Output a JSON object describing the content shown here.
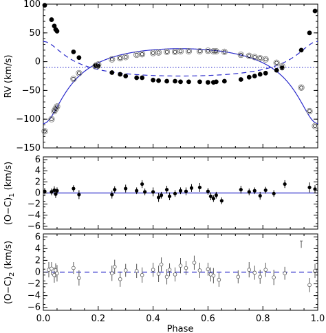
{
  "chart_data": [
    {
      "type": "scatter",
      "panel": "rv",
      "xlim": [
        0.0,
        1.0
      ],
      "ylim": [
        -150,
        100
      ],
      "ylabel": "RV (km/s)",
      "xlabel": "",
      "yticks": [
        100,
        50,
        0,
        -50,
        -100,
        -150
      ],
      "reference_line": -10,
      "curve_params": {
        "gamma": -10,
        "K1": 65,
        "K2": 30,
        "e": 0.5,
        "omega_deg": 180
      },
      "series": [
        {
          "name": "",
          "marker": "filled-circle",
          "line": "solid",
          "color": "#2a2acb",
          "points": [
            [
              0.005,
              98
            ],
            [
              0.03,
              73
            ],
            [
              0.04,
              62
            ],
            [
              0.045,
              56
            ],
            [
              0.05,
              53
            ],
            [
              0.11,
              17
            ],
            [
              0.13,
              7
            ],
            [
              0.19,
              -6
            ],
            [
              0.2,
              -8
            ],
            [
              0.25,
              -19
            ],
            [
              0.28,
              -22
            ],
            [
              0.3,
              -25
            ],
            [
              0.34,
              -28
            ],
            [
              0.36,
              -28
            ],
            [
              0.4,
              -32
            ],
            [
              0.42,
              -33
            ],
            [
              0.45,
              -34
            ],
            [
              0.48,
              -34
            ],
            [
              0.5,
              -35
            ],
            [
              0.53,
              -35
            ],
            [
              0.57,
              -35
            ],
            [
              0.6,
              -36
            ],
            [
              0.62,
              -36
            ],
            [
              0.63,
              -35
            ],
            [
              0.66,
              -34
            ],
            [
              0.72,
              -31
            ],
            [
              0.75,
              -27
            ],
            [
              0.77,
              -25
            ],
            [
              0.79,
              -22
            ],
            [
              0.81,
              -20
            ],
            [
              0.85,
              -15
            ],
            [
              0.87,
              -11
            ],
            [
              0.94,
              20
            ],
            [
              0.97,
              50
            ],
            [
              0.99,
              88
            ]
          ]
        },
        {
          "name": "",
          "marker": "open-circle",
          "line": "dashed",
          "color": "#2a2acb",
          "points": [
            [
              0.005,
              -121
            ],
            [
              0.03,
              -100
            ],
            [
              0.04,
              -86
            ],
            [
              0.045,
              -82
            ],
            [
              0.05,
              -78
            ],
            [
              0.11,
              -30
            ],
            [
              0.13,
              -20
            ],
            [
              0.19,
              -8
            ],
            [
              0.2,
              -5
            ],
            [
              0.25,
              4
            ],
            [
              0.28,
              6
            ],
            [
              0.3,
              8
            ],
            [
              0.34,
              12
            ],
            [
              0.36,
              13
            ],
            [
              0.4,
              15
            ],
            [
              0.42,
              16
            ],
            [
              0.45,
              17
            ],
            [
              0.48,
              17
            ],
            [
              0.5,
              18
            ],
            [
              0.53,
              18
            ],
            [
              0.57,
              18
            ],
            [
              0.6,
              19
            ],
            [
              0.62,
              18
            ],
            [
              0.63,
              18
            ],
            [
              0.66,
              17
            ],
            [
              0.72,
              12
            ],
            [
              0.75,
              10
            ],
            [
              0.77,
              8
            ],
            [
              0.79,
              6
            ],
            [
              0.81,
              4
            ],
            [
              0.85,
              -2
            ],
            [
              0.87,
              -8
            ],
            [
              0.94,
              -45
            ],
            [
              0.97,
              -86
            ],
            [
              0.99,
              -112
            ]
          ]
        }
      ]
    },
    {
      "type": "scatter",
      "panel": "oc1",
      "xlim": [
        0.0,
        1.0
      ],
      "ylim": [
        -6.5,
        6.5
      ],
      "ylabel": "(O−C)",
      "ylabel_subscript": "1",
      "ylabel_units": " (km/s)",
      "yticks": [
        6,
        4,
        2,
        0,
        -2,
        -4,
        -6
      ],
      "reference_line": 0,
      "series": [
        {
          "name": "",
          "marker": "filled-circle",
          "error_bars": true,
          "points": [
            [
              0.005,
              0.3,
              0.6
            ],
            [
              0.03,
              0.2,
              0.6
            ],
            [
              0.04,
              0.5,
              0.7
            ],
            [
              0.045,
              -0.2,
              0.7
            ],
            [
              0.05,
              0.4,
              0.6
            ],
            [
              0.11,
              0.8,
              0.6
            ],
            [
              0.13,
              -0.3,
              0.8
            ],
            [
              0.25,
              -0.3,
              0.7
            ],
            [
              0.26,
              0.6,
              0.6
            ],
            [
              0.3,
              0.8,
              0.7
            ],
            [
              0.34,
              0.4,
              0.6
            ],
            [
              0.36,
              1.6,
              0.7
            ],
            [
              0.37,
              0.2,
              0.6
            ],
            [
              0.4,
              0.2,
              0.8
            ],
            [
              0.42,
              -0.8,
              0.8
            ],
            [
              0.43,
              -0.4,
              0.6
            ],
            [
              0.45,
              0.6,
              0.7
            ],
            [
              0.46,
              -0.6,
              0.7
            ],
            [
              0.48,
              -0.1,
              0.6
            ],
            [
              0.5,
              0.4,
              0.6
            ],
            [
              0.52,
              0.3,
              0.7
            ],
            [
              0.54,
              0.9,
              0.7
            ],
            [
              0.57,
              1.0,
              0.8
            ],
            [
              0.6,
              0.3,
              0.6
            ],
            [
              0.61,
              -0.6,
              0.7
            ],
            [
              0.62,
              -1.0,
              0.6
            ],
            [
              0.63,
              -0.4,
              0.6
            ],
            [
              0.65,
              -1.4,
              0.6
            ],
            [
              0.72,
              0.6,
              0.7
            ],
            [
              0.75,
              0.2,
              0.6
            ],
            [
              0.77,
              0.4,
              0.6
            ],
            [
              0.79,
              -0.5,
              0.7
            ],
            [
              0.81,
              0.5,
              0.6
            ],
            [
              0.84,
              -0.1,
              0.6
            ],
            [
              0.88,
              1.6,
              0.7
            ],
            [
              0.97,
              1.0,
              0.9
            ],
            [
              0.99,
              0.7,
              0.7
            ]
          ]
        }
      ]
    },
    {
      "type": "scatter",
      "panel": "oc2",
      "xlim": [
        0.0,
        1.0
      ],
      "ylim": [
        -6.5,
        6.5
      ],
      "xlabel": "Phase",
      "ylabel": "(O−C)",
      "ylabel_subscript": "2",
      "ylabel_units": " (km/s)",
      "yticks": [
        6,
        4,
        2,
        0,
        -2,
        -4,
        -6
      ],
      "xticks": [
        0.0,
        0.2,
        0.4,
        0.6,
        0.8,
        1.0
      ],
      "xtick_labels": [
        "0.0",
        "0.2",
        "0.4",
        "0.6",
        "0.8",
        "1.0"
      ],
      "reference_line": 0,
      "series": [
        {
          "name": "",
          "marker": "open-circle",
          "error_bars": true,
          "points": [
            [
              0.02,
              0.4,
              1.3
            ],
            [
              0.03,
              0.6,
              1.1
            ],
            [
              0.04,
              -0.5,
              1.3
            ],
            [
              0.045,
              0.3,
              1.2
            ],
            [
              0.05,
              -0.2,
              1.4
            ],
            [
              0.11,
              0.7,
              1.0
            ],
            [
              0.13,
              -1.0,
              1.3
            ],
            [
              0.25,
              -0.2,
              1.3
            ],
            [
              0.26,
              0.9,
              1.2
            ],
            [
              0.28,
              -1.2,
              1.3
            ],
            [
              0.3,
              0.3,
              1.1
            ],
            [
              0.34,
              0.2,
              1.2
            ],
            [
              0.36,
              -0.5,
              1.3
            ],
            [
              0.4,
              0.4,
              1.2
            ],
            [
              0.42,
              -0.3,
              1.4
            ],
            [
              0.43,
              1.3,
              1.2
            ],
            [
              0.45,
              -0.8,
              1.3
            ],
            [
              0.46,
              0.4,
              1.1
            ],
            [
              0.48,
              -0.4,
              1.2
            ],
            [
              0.5,
              1.1,
              1.3
            ],
            [
              0.52,
              0.7,
              1.2
            ],
            [
              0.55,
              1.6,
              1.2
            ],
            [
              0.57,
              0.3,
              1.3
            ],
            [
              0.6,
              0.5,
              1.1
            ],
            [
              0.61,
              -0.4,
              1.2
            ],
            [
              0.62,
              -0.6,
              1.3
            ],
            [
              0.64,
              -1.3,
              1.2
            ],
            [
              0.71,
              -0.8,
              1.1
            ],
            [
              0.75,
              0.4,
              1.3
            ],
            [
              0.77,
              -0.1,
              1.2
            ],
            [
              0.79,
              -0.8,
              1.2
            ],
            [
              0.81,
              0.4,
              1.2
            ],
            [
              0.84,
              -0.9,
              1.3
            ],
            [
              0.88,
              -0.2,
              1.1
            ],
            [
              0.97,
              -2.2,
              1.2
            ],
            [
              0.99,
              0.2,
              1.2
            ]
          ]
        }
      ],
      "outlier_mark": [
        0.94,
        5.3
      ]
    }
  ]
}
